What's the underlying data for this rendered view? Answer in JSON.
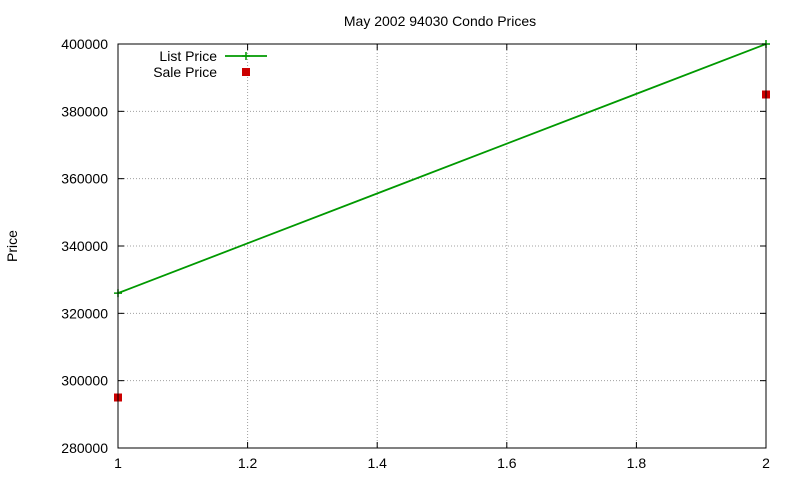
{
  "chart_data": {
    "type": "line",
    "title": "May 2002 94030 Condo Prices",
    "xlabel": "",
    "ylabel": "Price",
    "xlim": [
      1,
      2
    ],
    "ylim": [
      280000,
      400000
    ],
    "xticks": [
      "1",
      "1.2",
      "1.4",
      "1.6",
      "1.8",
      "2"
    ],
    "yticks": [
      "280000",
      "300000",
      "320000",
      "340000",
      "360000",
      "380000",
      "400000"
    ],
    "grid": true,
    "legend_position": "top-left",
    "series": [
      {
        "name": "List Price",
        "style": "linespoints",
        "marker": "plus",
        "color": "#009900",
        "x": [
          1,
          2
        ],
        "y": [
          326000,
          400000
        ]
      },
      {
        "name": "Sale Price",
        "style": "points",
        "marker": "square",
        "color": "#cc0000",
        "x": [
          1,
          2
        ],
        "y": [
          295000,
          385000
        ]
      }
    ]
  }
}
